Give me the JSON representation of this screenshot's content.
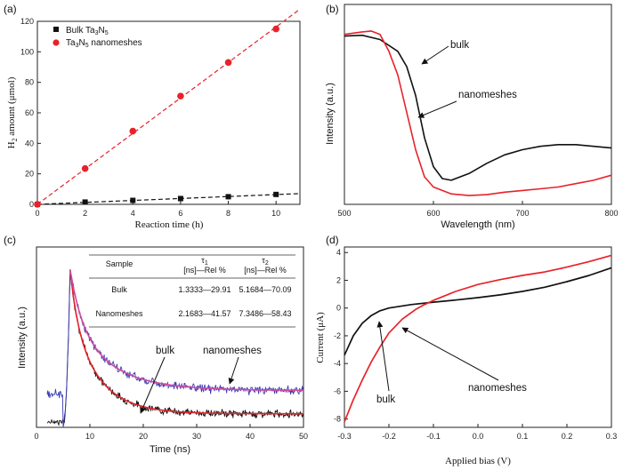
{
  "chart_data": [
    {
      "panel": "(a)",
      "type": "scatter",
      "xlabel": "Reaction time (h)",
      "ylabel": "H2 amount (μmol)",
      "xlim": [
        0,
        11
      ],
      "ylim": [
        0,
        120
      ],
      "xticks": [
        "0",
        "2",
        "4",
        "6",
        "8",
        "10"
      ],
      "yticks": [
        "0",
        "20",
        "40",
        "60",
        "80",
        "100",
        "120"
      ],
      "legend_position": "top-left",
      "series": [
        {
          "name": "Bulk Ta3N5",
          "marker": "square",
          "color": "#111111",
          "fit": "dashed",
          "x": [
            0,
            2,
            4,
            6,
            8,
            10
          ],
          "values": [
            0,
            1.5,
            2.6,
            3.8,
            5.0,
            6.5
          ]
        },
        {
          "name": "Ta3N5 nanomeshes",
          "marker": "circle",
          "color": "#e8222a",
          "fit": "dashed",
          "x": [
            0,
            2,
            4,
            6,
            8,
            10
          ],
          "values": [
            0,
            23.5,
            48,
            71,
            93,
            115
          ]
        }
      ]
    },
    {
      "panel": "(b)",
      "type": "line",
      "xlabel": "Wavelength (nm)",
      "ylabel": "Intensity (a.u.)",
      "xlim": [
        500,
        800
      ],
      "xticks": [
        "500",
        "600",
        "700",
        "800"
      ],
      "series": [
        {
          "name": "bulk",
          "color": "#111111",
          "x": [
            500,
            520,
            540,
            560,
            570,
            580,
            590,
            600,
            610,
            620,
            640,
            660,
            680,
            700,
            720,
            740,
            760,
            780,
            800
          ],
          "values": [
            0.95,
            0.955,
            0.93,
            0.86,
            0.77,
            0.6,
            0.35,
            0.18,
            0.11,
            0.1,
            0.14,
            0.2,
            0.25,
            0.28,
            0.3,
            0.31,
            0.31,
            0.3,
            0.29
          ]
        },
        {
          "name": "nanomeshes",
          "color": "#e8222a",
          "x": [
            500,
            520,
            530,
            540,
            550,
            560,
            570,
            580,
            590,
            600,
            620,
            640,
            660,
            680,
            700,
            720,
            740,
            760,
            780,
            800
          ],
          "values": [
            0.96,
            0.975,
            0.98,
            0.96,
            0.86,
            0.72,
            0.5,
            0.28,
            0.12,
            0.06,
            0.02,
            0.01,
            0.015,
            0.03,
            0.04,
            0.05,
            0.06,
            0.08,
            0.1,
            0.13
          ]
        }
      ],
      "annotations": [
        "bulk",
        "nanomeshes"
      ]
    },
    {
      "panel": "(c)",
      "type": "line",
      "xlabel": "Time (ns)",
      "ylabel": "Intensity (a.u.)",
      "xlim": [
        0,
        50
      ],
      "xticks": [
        "0",
        "10",
        "20",
        "30",
        "40",
        "50"
      ],
      "series": [
        {
          "name": "nanomeshes",
          "color": "#3b3bb5",
          "tau1": 2.1683,
          "rel1": 41.57,
          "tau2": 7.3486,
          "rel2": 58.43,
          "baseline": 0.22
        },
        {
          "name": "bulk",
          "color": "#111111",
          "tau1": 1.3333,
          "rel1": 29.91,
          "tau2": 5.1684,
          "rel2": 70.09,
          "baseline": 0.07
        }
      ],
      "table": {
        "headers": [
          "Sample",
          "τ1",
          "τ2"
        ],
        "subheaders": [
          "",
          "[ns]—Rel %",
          "[ns]—Rel %"
        ],
        "rows": [
          [
            "Bulk",
            "1.3333—29.91",
            "5.1684—70.09"
          ],
          [
            "Nanomeshes",
            "2.1683—41.57",
            "7.3486—58.43"
          ]
        ]
      },
      "annotations": [
        "bulk",
        "nanomeshes"
      ]
    },
    {
      "panel": "(d)",
      "type": "line",
      "xlabel": "Applied bias (V)",
      "ylabel": "Current (μA)",
      "xlim": [
        -0.3,
        0.3
      ],
      "ylim": [
        -8.6,
        4.4
      ],
      "xticks": [
        "-0.3",
        "-0.2",
        "-0.1",
        "0.0",
        "0.1",
        "0.2",
        "0.3"
      ],
      "yticks": [
        "-8",
        "-6",
        "-4",
        "-2",
        "0",
        "2",
        "4"
      ],
      "series": [
        {
          "name": "bulk",
          "color": "#111111",
          "x": [
            -0.3,
            -0.28,
            -0.26,
            -0.24,
            -0.22,
            -0.2,
            -0.15,
            -0.1,
            -0.05,
            0.0,
            0.05,
            0.1,
            0.15,
            0.2,
            0.25,
            0.3
          ],
          "values": [
            -3.4,
            -2.0,
            -1.1,
            -0.55,
            -0.2,
            0.0,
            0.25,
            0.42,
            0.58,
            0.75,
            0.95,
            1.2,
            1.5,
            1.9,
            2.35,
            2.9
          ]
        },
        {
          "name": "nanomeshes",
          "color": "#e8222a",
          "x": [
            -0.3,
            -0.28,
            -0.26,
            -0.24,
            -0.22,
            -0.2,
            -0.17,
            -0.14,
            -0.12,
            -0.1,
            -0.05,
            0.0,
            0.05,
            0.1,
            0.15,
            0.2,
            0.25,
            0.3
          ],
          "values": [
            -8.2,
            -6.6,
            -5.2,
            -3.9,
            -2.8,
            -1.8,
            -0.8,
            -0.1,
            0.25,
            0.55,
            1.2,
            1.7,
            2.05,
            2.35,
            2.6,
            2.95,
            3.35,
            3.8
          ]
        }
      ],
      "annotations": [
        "bulk",
        "nanomeshes"
      ]
    }
  ]
}
